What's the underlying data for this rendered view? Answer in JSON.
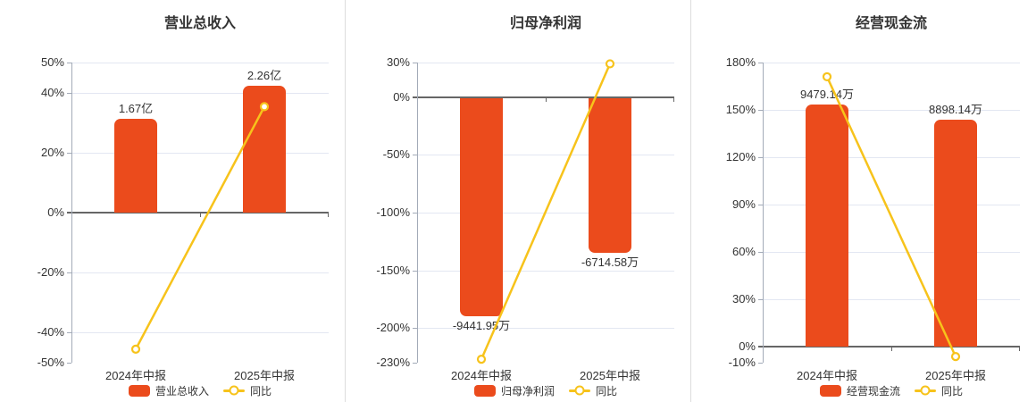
{
  "colors": {
    "bar": "#EB4B1C",
    "line": "#F7C31B",
    "grid": "#E3E7F2",
    "zero": "#666666",
    "axis": "#A3ABB8",
    "divider": "#DDDDDD",
    "text": "#333333"
  },
  "y_tick_suffix": "%",
  "chart_data": [
    {
      "type": "bar+line",
      "title": "营业总收入",
      "categories": [
        "2024年中报",
        "2025年中报"
      ],
      "bar_series": {
        "name": "营业总收入",
        "value_labels": [
          "1.67亿",
          "2.26亿"
        ],
        "display_values_pct_axis": [
          31.2,
          42.3
        ],
        "label_position": "above"
      },
      "line_series": {
        "name": "同比",
        "unit": "%",
        "values": [
          -45.5,
          35.3
        ]
      },
      "y_ticks": [
        50,
        40,
        20,
        0,
        -20,
        -40,
        -50
      ],
      "ylim": [
        -50,
        50
      ],
      "grid": true,
      "legend_position": "bottom"
    },
    {
      "type": "bar+line",
      "title": "归母净利润",
      "categories": [
        "2024年中报",
        "2025年中报"
      ],
      "bar_series": {
        "name": "归母净利润",
        "value_labels": [
          "-9441.95万",
          "-6714.58万"
        ],
        "display_values_pct_axis": [
          -190,
          -135.1
        ],
        "label_position": "below"
      },
      "line_series": {
        "name": "同比",
        "unit": "%",
        "values": [
          -227,
          28.9
        ]
      },
      "y_ticks": [
        30,
        0,
        -50,
        -100,
        -150,
        -200,
        -230
      ],
      "ylim": [
        -230,
        30
      ],
      "grid": true,
      "legend_position": "bottom"
    },
    {
      "type": "bar+line",
      "title": "经营现金流",
      "categories": [
        "2024年中报",
        "2025年中报"
      ],
      "bar_series": {
        "name": "经营现金流",
        "value_labels": [
          "9479.14万",
          "8898.14万"
        ],
        "display_values_pct_axis": [
          153.4,
          143.8
        ],
        "label_position": "above"
      },
      "line_series": {
        "name": "同比",
        "unit": "%",
        "values": [
          171,
          -6.1
        ]
      },
      "y_ticks": [
        180,
        150,
        120,
        90,
        60,
        30,
        0,
        -10
      ],
      "ylim": [
        -10,
        180
      ],
      "grid": true,
      "legend_position": "bottom"
    }
  ]
}
